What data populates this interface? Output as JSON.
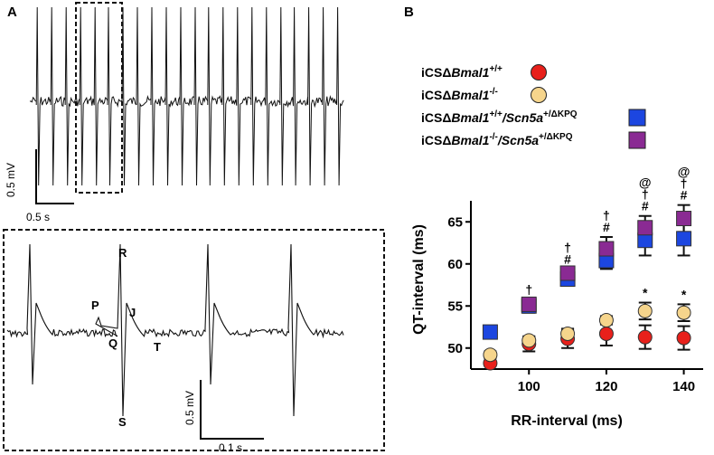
{
  "panels": {
    "a": "A",
    "b": "B"
  },
  "panel_a": {
    "top_scale": {
      "voltage": "0.5 mV",
      "time": "0.5 s"
    },
    "zoom_scale": {
      "voltage": "0.5 mV",
      "time": "0.1 s"
    },
    "wave_labels": {
      "p": "P",
      "q": "Q",
      "r": "R",
      "s": "S",
      "j": "J",
      "t": "T"
    }
  },
  "legend": {
    "entries": [
      {
        "id": "wt",
        "prefix": "iCSΔ",
        "gene": "Bmal1",
        "sup": "+/+",
        "suffix_gene": "",
        "suffix_sup": "",
        "color": "#e8201b",
        "shape": "circle"
      },
      {
        "id": "ko",
        "prefix": "iCSΔ",
        "gene": "Bmal1",
        "sup": "-/-",
        "suffix_gene": "",
        "suffix_sup": "",
        "color": "#f6d58c",
        "shape": "circle"
      },
      {
        "id": "wt_kpq",
        "prefix": "iCSΔ",
        "gene": "Bmal1",
        "sup": "+/+",
        "suffix_gene": "/Scn5a",
        "suffix_sup": "+/ΔKPQ",
        "color": "#1c46e0",
        "shape": "square"
      },
      {
        "id": "ko_kpq",
        "prefix": "iCSΔ",
        "gene": "Bmal1",
        "sup": "-/-",
        "suffix_gene": "/Scn5a",
        "suffix_sup": "+/ΔKPQ",
        "color": "#8a2a93",
        "shape": "square"
      }
    ]
  },
  "chart_data": {
    "type": "scatter",
    "xlabel": "RR-interval (ms)",
    "ylabel": "QT-interval (ms)",
    "xlim": [
      85,
      145
    ],
    "ylim": [
      47.5,
      67.5
    ],
    "xticks": [
      100,
      120,
      140
    ],
    "yticks": [
      50,
      55,
      60,
      65
    ],
    "series": [
      {
        "name": "iCSΔBmal1+/+",
        "color": "#e8201b",
        "shape": "circle",
        "x": [
          90,
          100,
          110,
          120,
          130,
          140
        ],
        "y": [
          48.2,
          50.5,
          51.1,
          51.7,
          51.3,
          51.2
        ],
        "err": [
          0.3,
          0.9,
          1.1,
          1.4,
          1.4,
          1.4
        ]
      },
      {
        "name": "iCSΔBmal1-/-",
        "color": "#f6d58c",
        "shape": "circle",
        "x": [
          90,
          100,
          110,
          120,
          130,
          140
        ],
        "y": [
          49.2,
          50.9,
          51.7,
          53.3,
          54.4,
          54.2
        ],
        "err": [
          0.4,
          0.4,
          0.6,
          0.5,
          1.0,
          1.0
        ]
      },
      {
        "name": "iCSΔBmal1+/+/Scn5a+/ΔKPQ",
        "color": "#1c46e0",
        "shape": "square",
        "x": [
          90,
          100,
          110,
          120,
          130,
          140
        ],
        "y": [
          51.9,
          55.0,
          58.2,
          60.4,
          62.8,
          63.0
        ],
        "err": [
          0.0,
          0.8,
          0.6,
          1.0,
          1.8,
          2.0
        ]
      },
      {
        "name": "iCSΔBmal1-/-/Scn5a+/ΔKPQ",
        "color": "#8a2a93",
        "shape": "square",
        "x": [
          100,
          110,
          120,
          130,
          140
        ],
        "y": [
          55.2,
          58.9,
          61.8,
          64.3,
          65.4
        ],
        "err": [
          0.5,
          0.5,
          1.4,
          1.4,
          1.6
        ]
      }
    ],
    "annotations": [
      {
        "x": 100,
        "lines": [
          "†"
        ]
      },
      {
        "x": 110,
        "lines": [
          "†",
          "#"
        ]
      },
      {
        "x": 120,
        "lines": [
          "†",
          "#"
        ]
      },
      {
        "x": 130,
        "lines": [
          "@",
          "†",
          "#"
        ]
      },
      {
        "x": 140,
        "lines": [
          "@",
          "†",
          "#"
        ]
      },
      {
        "x": 130,
        "lines": [
          "*"
        ],
        "low": true
      },
      {
        "x": 140,
        "lines": [
          "*"
        ],
        "low": true
      }
    ]
  }
}
